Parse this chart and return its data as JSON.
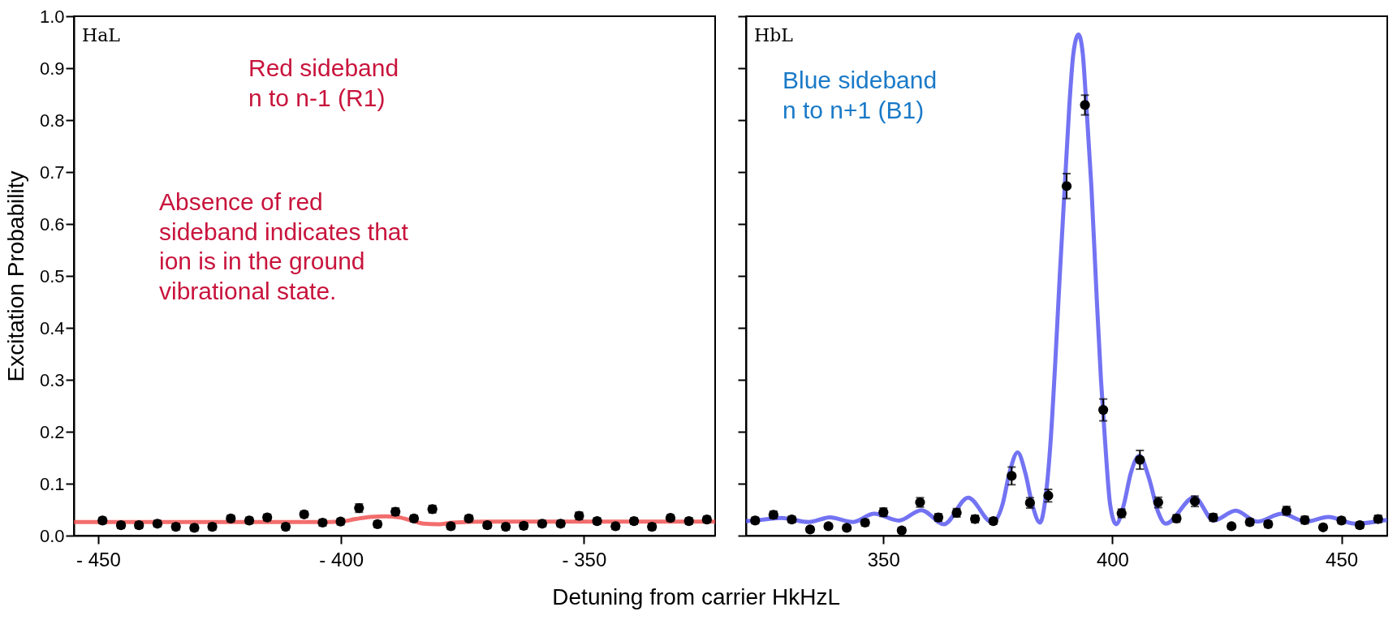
{
  "chart_data": [
    {
      "type": "scatter",
      "ylabel": "Excitation Probability",
      "xlabel": "Detuning from carrier HkHzL",
      "annotations": [
        "HaL",
        "Red sideband\nn to n-1 (R1)",
        "Absence of red\nsideband indicates that\nion is in the ground\nvibrational state."
      ],
      "xlim": [
        -455,
        -323
      ],
      "xticks": [
        {
          "value": -450,
          "label": "- 450"
        },
        {
          "value": -400,
          "label": "- 400"
        },
        {
          "value": -350,
          "label": "- 350"
        }
      ],
      "ylim": [
        0,
        1
      ],
      "yticks": [
        {
          "value": 0,
          "label": "0.0"
        },
        {
          "value": 0.1,
          "label": "0.1"
        },
        {
          "value": 0.2,
          "label": "0.2"
        },
        {
          "value": 0.3,
          "label": "0.3"
        },
        {
          "value": 0.4,
          "label": "0.4"
        },
        {
          "value": 0.5,
          "label": "0.5"
        },
        {
          "value": 0.6,
          "label": "0.6"
        },
        {
          "value": 0.7,
          "label": "0.7"
        },
        {
          "value": 0.8,
          "label": "0.8"
        },
        {
          "value": 0.9,
          "label": "0.9"
        },
        {
          "value": 1,
          "label": "1.0"
        }
      ],
      "grid": false,
      "series": [
        {
          "type": "line",
          "color": "#f04848",
          "x": [
            -455,
            -440,
            -420,
            -405,
            -400,
            -397,
            -394,
            -391,
            -388,
            -385.5,
            -383,
            -380,
            -377,
            -370,
            -350,
            -335,
            -323
          ],
          "values": [
            0.026,
            0.026,
            0.026,
            0.026,
            0.027,
            0.032,
            0.036,
            0.037,
            0.035,
            0.029,
            0.023,
            0.022,
            0.025,
            0.027,
            0.027,
            0.027,
            0.027
          ]
        },
        {
          "marker": "circle",
          "color": "#000000",
          "x": [
            -449.1,
            -445.3,
            -441.6,
            -437.8,
            -434.0,
            -430.2,
            -426.5,
            -422.7,
            -418.9,
            -415.2,
            -411.4,
            -407.6,
            -403.8,
            -400.1,
            -396.3,
            -392.5,
            -388.8,
            -385.0,
            -381.2,
            -377.4,
            -373.7,
            -369.9,
            -366.1,
            -362.4,
            -358.6,
            -354.8,
            -351.0,
            -347.3,
            -343.5,
            -339.7,
            -336.0,
            -332.2,
            -328.4,
            -324.7
          ],
          "values": [
            0.029,
            0.02,
            0.02,
            0.023,
            0.017,
            0.015,
            0.017,
            0.033,
            0.029,
            0.035,
            0.017,
            0.041,
            0.025,
            0.027,
            0.053,
            0.022,
            0.046,
            0.033,
            0.051,
            0.018,
            0.033,
            0.02,
            0.017,
            0.019,
            0.023,
            0.023,
            0.038,
            0.028,
            0.018,
            0.028,
            0.017,
            0.034,
            0.028,
            0.031
          ],
          "errors": [
            0.006,
            0.006,
            0.006,
            0.006,
            0.006,
            0.006,
            0.006,
            0.006,
            0.006,
            0.006,
            0.006,
            0.006,
            0.006,
            0.006,
            0.008,
            0.006,
            0.007,
            0.006,
            0.007,
            0.006,
            0.006,
            0.006,
            0.006,
            0.006,
            0.006,
            0.006,
            0.007,
            0.006,
            0.006,
            0.006,
            0.006,
            0.006,
            0.006,
            0.006
          ]
        }
      ]
    },
    {
      "type": "scatter",
      "annotations": [
        "HbL",
        "Blue sideband\nn to n+1 (B1)"
      ],
      "xlim": [
        320,
        460
      ],
      "xticks": [
        350,
        400,
        450
      ],
      "ylim": [
        0,
        1
      ],
      "yticks": [
        0,
        0.1,
        0.2,
        0.3,
        0.4,
        0.5,
        0.6,
        0.7,
        0.8,
        0.9,
        1
      ],
      "tick_labels": "x",
      "grid": false,
      "series": [
        {
          "type": "line",
          "color": "#5050f0",
          "x": [
            320,
            321.8,
            327.7,
            333.7,
            338.3,
            343.3,
            348.0,
            353.4,
            358.3,
            363.2,
            368.5,
            373.8,
            376,
            377.5,
            379.3,
            381,
            382.5,
            384.2,
            385.2,
            386.5,
            387.5,
            388.5,
            389.6,
            390.6,
            391.5,
            392.6,
            393.5,
            394.3,
            395.4,
            396.5,
            397.5,
            398.4,
            399.5,
            400.8,
            402.5,
            404,
            405.9,
            408,
            410,
            411.6,
            417.9,
            422.1,
            426.9,
            431.6,
            437,
            442.3,
            447.1,
            453,
            459.8
          ],
          "values": [
            0.028,
            0.029,
            0.034,
            0.026,
            0.035,
            0.026,
            0.042,
            0.029,
            0.049,
            0.022,
            0.073,
            0.025,
            0.06,
            0.12,
            0.16,
            0.12,
            0.06,
            0.025,
            0.06,
            0.181,
            0.33,
            0.5,
            0.673,
            0.829,
            0.93,
            0.965,
            0.93,
            0.829,
            0.673,
            0.47,
            0.3,
            0.181,
            0.06,
            0.022,
            0.06,
            0.12,
            0.154,
            0.11,
            0.045,
            0.023,
            0.074,
            0.029,
            0.048,
            0.027,
            0.042,
            0.027,
            0.036,
            0.023,
            0.03
          ]
        },
        {
          "marker": "circle",
          "color": "#000000",
          "x": [
            322,
            326,
            330,
            334,
            338,
            342,
            346,
            350,
            354,
            358,
            362,
            366,
            370,
            374,
            378,
            382,
            386,
            390,
            394,
            398,
            402,
            406,
            410,
            414,
            418,
            422,
            426,
            430,
            434,
            438,
            442,
            446,
            450,
            454,
            458
          ],
          "values": [
            0.029,
            0.04,
            0.031,
            0.012,
            0.018,
            0.015,
            0.025,
            0.045,
            0.01,
            0.064,
            0.035,
            0.044,
            0.032,
            0.028,
            0.115,
            0.063,
            0.077,
            0.673,
            0.829,
            0.242,
            0.043,
            0.146,
            0.064,
            0.033,
            0.066,
            0.035,
            0.018,
            0.026,
            0.022,
            0.048,
            0.03,
            0.016,
            0.029,
            0.02,
            0.032
          ],
          "errors": [
            0.006,
            0.007,
            0.006,
            0.005,
            0.005,
            0.005,
            0.006,
            0.008,
            0.005,
            0.009,
            0.007,
            0.008,
            0.007,
            0.006,
            0.017,
            0.01,
            0.012,
            0.024,
            0.019,
            0.021,
            0.008,
            0.018,
            0.01,
            0.007,
            0.01,
            0.007,
            0.005,
            0.006,
            0.006,
            0.008,
            0.007,
            0.005,
            0.006,
            0.006,
            0.007
          ]
        }
      ]
    }
  ]
}
